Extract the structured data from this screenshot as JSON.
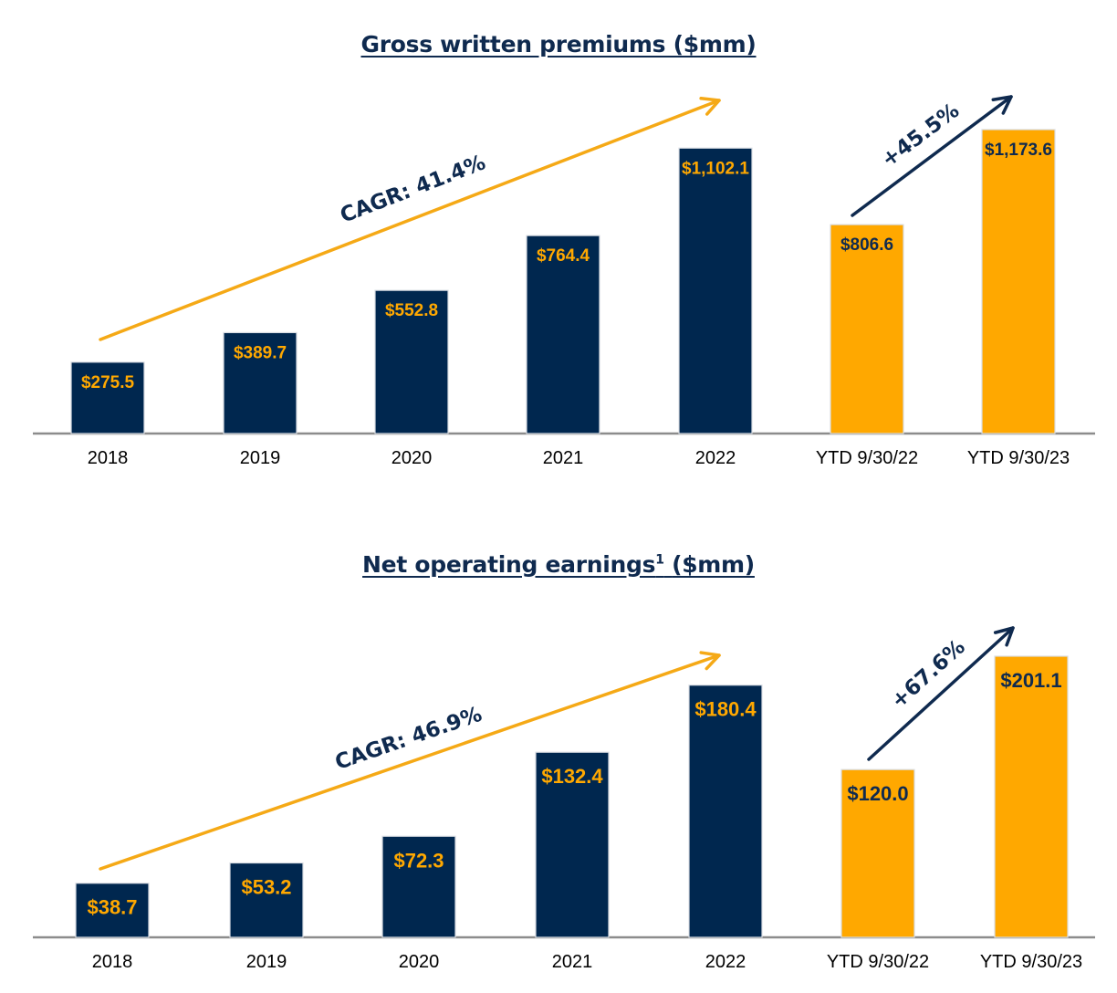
{
  "colors": {
    "navy": "#00274f",
    "gold": "#ffa800",
    "axis": "#8c8c8c",
    "label_on_navy": "#ffa800",
    "label_on_gold": "#0f2a4f",
    "trend_arrow": "#f5a916",
    "growth_arrow": "#0f2a4f"
  },
  "chart_data": [
    {
      "type": "bar",
      "title": "Gross written premiums ($mm)",
      "categories": [
        "2018",
        "2019",
        "2020",
        "2021",
        "2022",
        "YTD 9/30/22",
        "YTD 9/30/23"
      ],
      "values": [
        275.5,
        389.7,
        552.8,
        764.4,
        1102.1,
        806.6,
        1173.6
      ],
      "value_labels": [
        "$275.5",
        "$389.7",
        "$552.8",
        "$764.4",
        "$1,102.1",
        "$806.6",
        "$1,173.6"
      ],
      "bar_colors": [
        "navy",
        "navy",
        "navy",
        "navy",
        "navy",
        "gold",
        "gold"
      ],
      "ylim": [
        0,
        1173.6
      ],
      "grid": false,
      "annotations": [
        {
          "text": "CAGR: 41.4%",
          "kind": "trend-arrow",
          "color": "gold"
        },
        {
          "text": "+45.5%",
          "kind": "growth-arrow",
          "color": "navy"
        }
      ]
    },
    {
      "type": "bar",
      "title": "Net operating earnings",
      "title_superscript": "1",
      "title_suffix": "($mm)",
      "categories": [
        "2018",
        "2019",
        "2020",
        "2021",
        "2022",
        "YTD 9/30/22",
        "YTD 9/30/23"
      ],
      "values": [
        38.7,
        53.2,
        72.3,
        132.4,
        180.4,
        120.0,
        201.1
      ],
      "value_labels": [
        "$38.7",
        "$53.2",
        "$72.3",
        "$132.4",
        "$180.4",
        "$120.0",
        "$201.1"
      ],
      "bar_colors": [
        "navy",
        "navy",
        "navy",
        "navy",
        "navy",
        "gold",
        "gold"
      ],
      "ylim": [
        0,
        201.1
      ],
      "grid": false,
      "annotations": [
        {
          "text": "CAGR: 46.9%",
          "kind": "trend-arrow",
          "color": "gold"
        },
        {
          "text": "+67.6%",
          "kind": "growth-arrow",
          "color": "navy"
        }
      ]
    }
  ]
}
